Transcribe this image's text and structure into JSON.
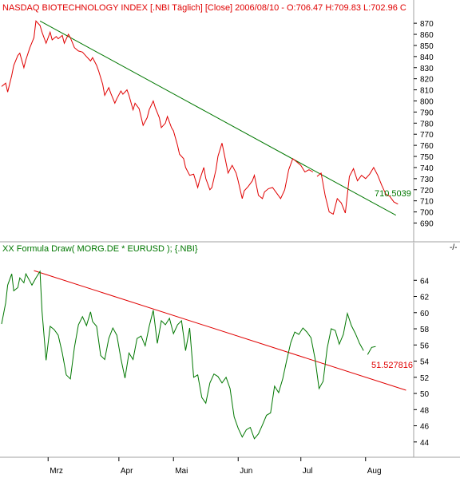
{
  "colors": {
    "bg": "#ffffff",
    "axis_bg": "#ece9d8",
    "red": "#e00000",
    "green": "#007700",
    "text": "#000000"
  },
  "chart_data": [
    {
      "type": "line",
      "title": "NASDAQ BIOTECHNOLOGY INDEX [.NBI  Täglich] [Close] 2006/08/10 - O:706.47 H:709.83 L:702.96 C",
      "ylim": [
        681,
        878
      ],
      "yticks": [
        690,
        700,
        710,
        720,
        730,
        740,
        750,
        760,
        770,
        780,
        790,
        800,
        810,
        820,
        830,
        840,
        850,
        860,
        870
      ],
      "series": [
        {
          "color": "#e00000",
          "x": [
            0,
            2,
            3,
            5,
            6,
            8,
            9,
            11,
            12,
            14,
            16,
            17,
            19,
            20,
            22,
            24,
            25,
            27,
            28,
            30,
            31,
            33,
            34,
            36,
            38,
            40,
            42,
            44,
            45,
            47,
            48,
            50,
            51,
            53,
            54,
            56,
            57,
            59,
            60,
            62,
            63,
            65,
            66,
            68,
            70,
            72,
            73,
            75,
            76,
            78,
            79,
            81,
            82,
            84,
            85,
            87,
            88,
            90,
            91,
            93,
            95,
            97,
            98,
            100,
            101,
            103,
            104,
            106,
            107,
            109,
            111,
            112,
            114,
            116,
            117,
            119,
            120,
            122,
            124,
            125,
            127,
            129,
            130,
            132,
            134,
            136,
            138,
            140,
            142,
            144,
            146,
            148,
            150,
            152,
            154
          ],
          "values": [
            813,
            816,
            808,
            823,
            832,
            841,
            843,
            830,
            837,
            848,
            857,
            872,
            868,
            862,
            852,
            862,
            855,
            858,
            856,
            859,
            852,
            860,
            857,
            848,
            845,
            844,
            840,
            836,
            839,
            832,
            827,
            815,
            805,
            812,
            807,
            798,
            802,
            809,
            806,
            810,
            805,
            792,
            798,
            793,
            778,
            785,
            792,
            800,
            794,
            785,
            776,
            780,
            786,
            776,
            773,
            760,
            752,
            748,
            740,
            733,
            734,
            722,
            729,
            740,
            730,
            720,
            722,
            738,
            750,
            762,
            744,
            735,
            742,
            735,
            728,
            712,
            719,
            723,
            728,
            733,
            715,
            712,
            718,
            721,
            722,
            717,
            712,
            720,
            738,
            748,
            745,
            742,
            736,
            738,
            736
          ]
        },
        {
          "color": "#e00000",
          "x": [
            156,
            158,
            160,
            162,
            164,
            166,
            168,
            170,
            172,
            174,
            176,
            178,
            180,
            182,
            184,
            186,
            188,
            190,
            192,
            194,
            196
          ],
          "values": [
            732,
            735,
            715,
            700,
            698,
            712,
            708,
            699,
            732,
            739,
            728,
            733,
            730,
            734,
            740,
            733,
            724,
            716,
            714,
            709,
            707
          ]
        }
      ],
      "trendline": {
        "color": "#007700",
        "x": [
          19,
          195
        ],
        "values": [
          872,
          697
        ]
      },
      "annotation": {
        "text": "710.5039",
        "color": "#007700"
      }
    },
    {
      "type": "line",
      "title": "XX Formula Draw( MORG.DE * EURUSD ); {.NBI}",
      "ylim": [
        42.6,
        66.1
      ],
      "yticks": [
        44,
        46,
        48,
        50,
        52,
        54,
        56,
        58,
        60,
        62,
        64
      ],
      "series": [
        {
          "color": "#007700",
          "x": [
            0,
            2,
            3,
            5,
            6,
            8,
            9,
            11,
            12,
            14,
            15,
            17,
            19,
            20,
            22,
            24,
            26,
            28,
            30,
            32,
            34,
            36,
            38,
            40,
            42,
            44,
            45,
            47,
            49,
            51,
            53,
            55,
            57,
            59,
            61,
            63,
            65,
            67,
            69,
            71,
            73,
            75,
            77,
            79,
            81,
            83,
            85,
            87,
            89,
            91,
            93,
            95,
            97,
            99,
            101,
            103,
            105,
            107,
            109,
            111,
            113,
            115,
            117,
            119,
            121,
            123,
            125,
            127,
            129,
            131,
            133,
            135,
            137,
            139,
            141,
            143,
            145,
            147,
            149,
            151,
            153,
            155,
            157,
            159,
            161,
            163,
            165,
            167,
            169,
            171,
            173,
            175,
            177,
            179
          ],
          "values": [
            58.6,
            61.2,
            63.4,
            64.8,
            62.7,
            63.1,
            64.3,
            63.7,
            64.8,
            63.9,
            63.4,
            64.3,
            65.1,
            60.2,
            54.1,
            58.3,
            57.9,
            57.2,
            55.0,
            52.3,
            51.8,
            55.7,
            58.5,
            59.5,
            58.4,
            60.1,
            58.9,
            58.3,
            54.7,
            54.2,
            56.8,
            58.1,
            57.2,
            54.3,
            51.9,
            55.0,
            54.2,
            56.8,
            57.1,
            55.9,
            58.3,
            60.3,
            56.2,
            59.0,
            58.5,
            59.3,
            57.4,
            58.5,
            59.0,
            55.3,
            58.1,
            52.0,
            52.3,
            49.5,
            48.8,
            51.3,
            52.4,
            52.1,
            51.3,
            52.0,
            50.6,
            47.1,
            45.7,
            44.6,
            45.5,
            45.8,
            44.4,
            45.0,
            46.1,
            47.3,
            47.6,
            50.9,
            50.1,
            51.8,
            54.1,
            56.3,
            57.6,
            57.3,
            58.1,
            57.6,
            56.9,
            54.3,
            50.6,
            51.5,
            55.6,
            58.0,
            57.8,
            56.1,
            57.3,
            59.9,
            58.4,
            57.4,
            56.2,
            55.3
          ]
        },
        {
          "color": "#007700",
          "x": [
            181,
            183,
            185
          ],
          "values": [
            54.8,
            55.7,
            55.8
          ]
        }
      ],
      "trendline": {
        "color": "#e00000",
        "x": [
          16,
          200
        ],
        "values": [
          65.2,
          50.4
        ]
      },
      "annotation": {
        "text": "51.527816",
        "color": "#e00000"
      }
    }
  ],
  "xaxis": {
    "tick_x": [
      23,
      58,
      85,
      117,
      148,
      180
    ],
    "labels": [
      "Mrz",
      "Apr",
      "Mai",
      "Jun",
      "Jul",
      "Aug"
    ],
    "xlim": [
      0,
      203
    ]
  },
  "corner_mark": "-/-"
}
